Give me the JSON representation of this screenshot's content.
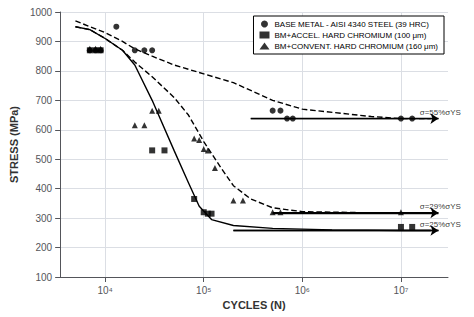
{
  "chart_data": {
    "type": "scatter",
    "xlabel": "CYCLES (N)",
    "ylabel": "STRESS (MPa)",
    "log": "x",
    "xlim": [
      3500,
      30000000
    ],
    "ylim": [
      100,
      1000
    ],
    "xticks": [
      {
        "value": 10000,
        "label": "10⁴"
      },
      {
        "value": 100000,
        "label": "10⁵"
      },
      {
        "value": 1000000,
        "label": "10⁶"
      },
      {
        "value": 10000000,
        "label": "10⁷"
      }
    ],
    "yticks": [
      100,
      200,
      300,
      400,
      500,
      600,
      700,
      800,
      900,
      1000
    ],
    "grid": true,
    "legend": "upper right",
    "series": [
      {
        "type": "line",
        "line_style": "dashed",
        "color": "#000000",
        "x": [
          5000,
          7000,
          10000,
          15000,
          20000,
          30000,
          50000,
          100000,
          200000,
          500000,
          1000000,
          5000000,
          10000000,
          20000000
        ],
        "values": [
          970,
          950,
          930,
          900,
          875,
          850,
          820,
          790,
          760,
          700,
          670,
          645,
          638,
          638
        ]
      },
      {
        "type": "line",
        "line_style": "solid",
        "marker": "arrow",
        "color": "#000000",
        "x": [
          300000,
          24000000
        ],
        "values": [
          638,
          638
        ]
      },
      {
        "type": "scatter",
        "name": "BASE METAL - AISI 4340 STEEL (39 HRC)",
        "marker": "circle",
        "color": "#000000",
        "x": [
          7000,
          8000,
          9000,
          13000,
          20000,
          25000,
          30000,
          500000,
          600000,
          700000,
          800000,
          10000000,
          13000000
        ],
        "values": [
          870,
          870,
          870,
          950,
          870,
          870,
          870,
          665,
          665,
          638,
          638,
          638,
          638
        ]
      },
      {
        "type": "line",
        "line_style": "solid",
        "color": "#000000",
        "x": [
          5000,
          7000,
          10000,
          15000,
          20000,
          30000,
          50000,
          70000,
          90000,
          120000,
          200000,
          500000,
          2000000,
          10000000,
          20000000
        ],
        "values": [
          950,
          940,
          910,
          870,
          820,
          700,
          530,
          420,
          340,
          295,
          275,
          265,
          260,
          258,
          258
        ]
      },
      {
        "type": "line",
        "line_style": "solid",
        "marker": "arrow",
        "color": "#000000",
        "x": [
          200000,
          24000000
        ],
        "values": [
          258,
          258
        ]
      },
      {
        "type": "scatter",
        "name": "BM+ACCEL. HARD CHROMIUM (100 μm)",
        "marker": "square",
        "color": "#000000",
        "x": [
          7000,
          8000,
          9000,
          30000,
          40000,
          80000,
          100000,
          110000,
          120000,
          10000000,
          13000000
        ],
        "values": [
          870,
          870,
          870,
          530,
          530,
          365,
          320,
          315,
          315,
          270,
          270
        ]
      },
      {
        "type": "line",
        "line_style": "dashed",
        "color": "#000000",
        "x": [
          5000,
          7000,
          10000,
          15000,
          20000,
          30000,
          50000,
          70000,
          100000,
          150000,
          200000,
          300000,
          500000,
          1000000,
          5000000,
          10000000,
          20000000
        ],
        "values": [
          950,
          940,
          910,
          870,
          830,
          780,
          710,
          650,
          560,
          470,
          410,
          365,
          335,
          322,
          318,
          318,
          318
        ]
      },
      {
        "type": "line",
        "line_style": "solid",
        "marker": "arrow",
        "color": "#000000",
        "x": [
          500000,
          24000000
        ],
        "values": [
          318,
          318
        ]
      },
      {
        "type": "scatter",
        "name": "BM+CONVENT. HARD CHROMIUM (160 μm)",
        "marker": "triangle",
        "color": "#000000",
        "x": [
          7000,
          8000,
          9000,
          20000,
          25000,
          30000,
          35000,
          80000,
          90000,
          100000,
          110000,
          130000,
          200000,
          250000,
          500000,
          600000,
          10000000
        ],
        "values": [
          875,
          875,
          875,
          615,
          615,
          665,
          665,
          570,
          565,
          535,
          530,
          470,
          360,
          360,
          320,
          320,
          320
        ]
      }
    ],
    "annotations": [
      {
        "text": "σ=55%σYS",
        "x": 15500000,
        "y": 638
      },
      {
        "text": "σ=29%σYS",
        "x": 15500000,
        "y": 318
      },
      {
        "text": "σ=25%σYS",
        "x": 15500000,
        "y": 258
      }
    ]
  }
}
